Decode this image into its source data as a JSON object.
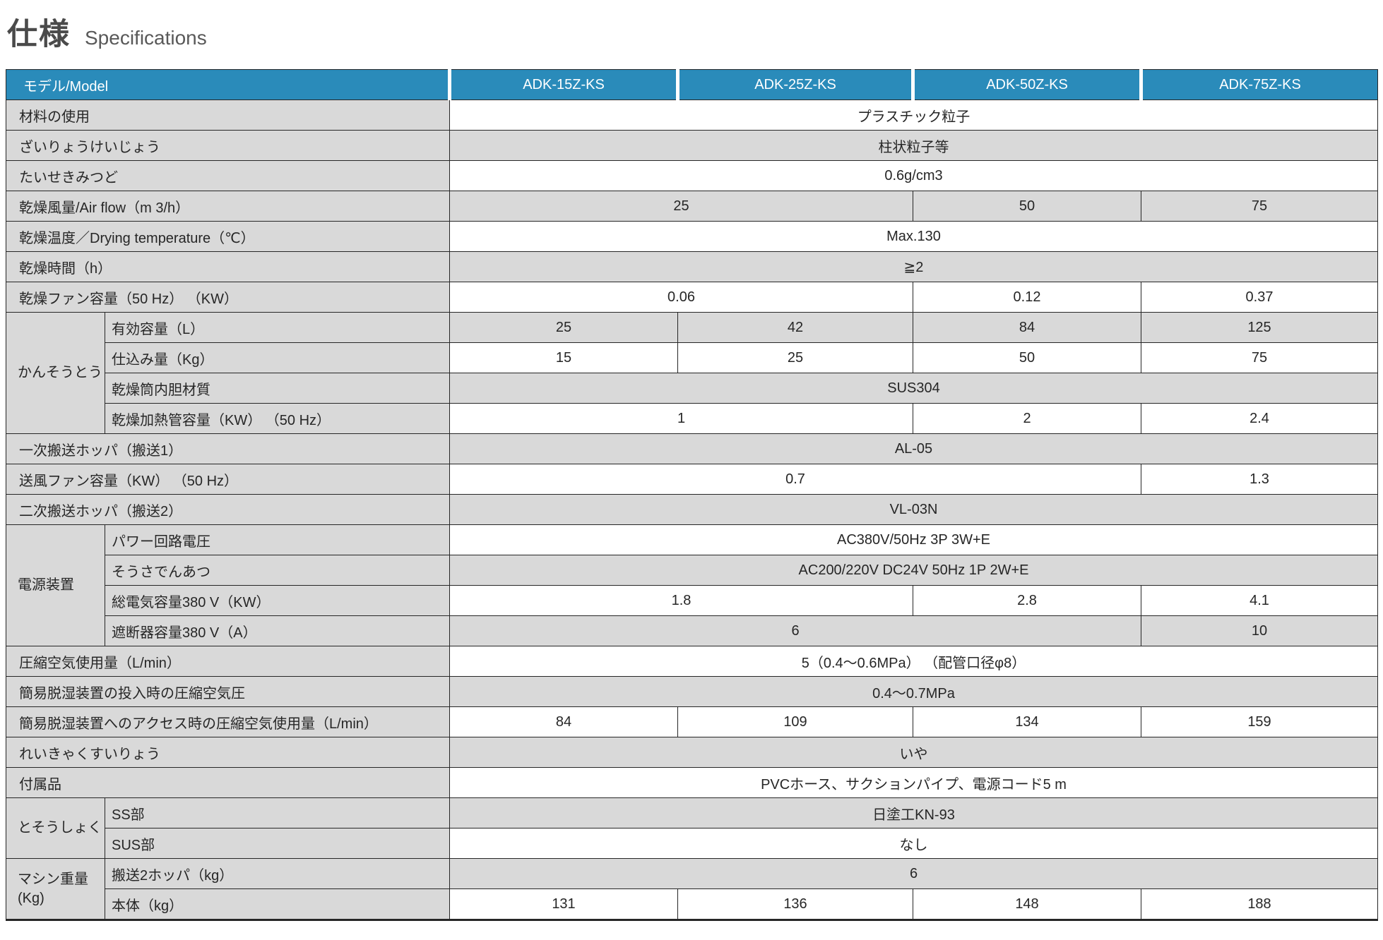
{
  "title": {
    "jp": "仕様",
    "en": "Specifications"
  },
  "colors": {
    "header_bg": "#2a8bba",
    "header_text": "#ffffff",
    "stripe_gray": "#d9d9d9",
    "stripe_white": "#ffffff",
    "border": "#262626",
    "title_jp": "#4a4a4a",
    "title_en": "#595959"
  },
  "table": {
    "header": {
      "label": "モデル/Model",
      "models": [
        "ADK-15Z-KS",
        "ADK-25Z-KS",
        "ADK-50Z-KS",
        "ADK-75Z-KS"
      ]
    },
    "rows": [
      {
        "label": "材料の使用",
        "bg": "white",
        "cells": [
          {
            "t": "プラスチック粒子",
            "s": 4
          }
        ]
      },
      {
        "label": "ざいりょうけいじょう",
        "bg": "gray",
        "cells": [
          {
            "t": "柱状粒子等",
            "s": 4
          }
        ]
      },
      {
        "label": "たいせきみつど",
        "bg": "white",
        "cells": [
          {
            "t": "0.6g/cm3",
            "s": 4
          }
        ]
      },
      {
        "label": "乾燥風量/Air flow（m 3/h）",
        "bg": "gray",
        "cells": [
          {
            "t": "25",
            "s": 2
          },
          {
            "t": "50",
            "s": 1
          },
          {
            "t": "75",
            "s": 1
          }
        ]
      },
      {
        "label": "乾燥温度／Drying temperature（℃）",
        "bg": "white",
        "cells": [
          {
            "t": "Max.130",
            "s": 4
          }
        ]
      },
      {
        "label": "乾燥時間（h）",
        "bg": "gray",
        "cells": [
          {
            "t": "≧2",
            "s": 4
          }
        ]
      },
      {
        "label": "乾燥ファン容量（50 Hz） （KW）",
        "bg": "white",
        "cells": [
          {
            "t": "0.06",
            "s": 2
          },
          {
            "t": "0.12",
            "s": 1
          },
          {
            "t": "0.37",
            "s": 1
          }
        ]
      },
      {
        "group": {
          "label": "かんそうとう",
          "rows": 4
        },
        "label": "有効容量（L）",
        "bg": "gray",
        "cells": [
          {
            "t": "25",
            "s": 1
          },
          {
            "t": "42",
            "s": 1
          },
          {
            "t": "84",
            "s": 1
          },
          {
            "t": "125",
            "s": 1
          }
        ]
      },
      {
        "sub": true,
        "label": "仕込み量（Kg）",
        "bg": "white",
        "cells": [
          {
            "t": "15",
            "s": 1
          },
          {
            "t": "25",
            "s": 1
          },
          {
            "t": "50",
            "s": 1
          },
          {
            "t": "75",
            "s": 1
          }
        ]
      },
      {
        "sub": true,
        "label": "乾燥筒内胆材質",
        "bg": "gray",
        "cells": [
          {
            "t": "SUS304",
            "s": 4
          }
        ]
      },
      {
        "sub": true,
        "label": "乾燥加熱管容量（KW） （50 Hz）",
        "bg": "white",
        "cells": [
          {
            "t": "1",
            "s": 2
          },
          {
            "t": "2",
            "s": 1
          },
          {
            "t": "2.4",
            "s": 1
          }
        ]
      },
      {
        "label": "一次搬送ホッパ（搬送1）",
        "bg": "gray",
        "cells": [
          {
            "t": "AL-05",
            "s": 4
          }
        ]
      },
      {
        "label": "送風ファン容量（KW） （50 Hz）",
        "bg": "white",
        "cells": [
          {
            "t": "0.7",
            "s": 3
          },
          {
            "t": "1.3",
            "s": 1
          }
        ]
      },
      {
        "label": "二次搬送ホッパ（搬送2）",
        "bg": "gray",
        "cells": [
          {
            "t": "VL-03N",
            "s": 4
          }
        ]
      },
      {
        "group": {
          "label": "電源装置",
          "rows": 4
        },
        "label": "パワー回路電圧",
        "bg": "white",
        "cells": [
          {
            "t": "AC380V/50Hz 3P 3W+E",
            "s": 4
          }
        ]
      },
      {
        "sub": true,
        "label": "そうさでんあつ",
        "bg": "gray",
        "cells": [
          {
            "t": "AC200/220V DC24V 50Hz 1P 2W+E",
            "s": 4
          }
        ]
      },
      {
        "sub": true,
        "label": "総電気容量380 V（KW）",
        "bg": "white",
        "cells": [
          {
            "t": "1.8",
            "s": 2
          },
          {
            "t": "2.8",
            "s": 1
          },
          {
            "t": "4.1",
            "s": 1
          }
        ]
      },
      {
        "sub": true,
        "label": "遮断器容量380 V（A）",
        "bg": "gray",
        "cells": [
          {
            "t": "6",
            "s": 3
          },
          {
            "t": "10",
            "s": 1
          }
        ]
      },
      {
        "label": "圧縮空気使用量（L/min）",
        "bg": "white",
        "cells": [
          {
            "t": "5（0.4〜0.6MPa） （配管口径φ8）",
            "s": 4
          }
        ]
      },
      {
        "label": "簡易脱湿装置の投入時の圧縮空気圧",
        "bg": "gray",
        "cells": [
          {
            "t": "0.4〜0.7MPa",
            "s": 4
          }
        ]
      },
      {
        "label": "簡易脱湿装置へのアクセス時の圧縮空気使用量（L/min）",
        "bg": "white",
        "cells": [
          {
            "t": "84",
            "s": 1
          },
          {
            "t": "109",
            "s": 1
          },
          {
            "t": "134",
            "s": 1
          },
          {
            "t": "159",
            "s": 1
          }
        ]
      },
      {
        "label": "れいきゃくすいりょう",
        "bg": "gray",
        "cells": [
          {
            "t": "いや",
            "s": 4
          }
        ]
      },
      {
        "label": "付属品",
        "bg": "white",
        "cells": [
          {
            "t": "PVCホース、サクションパイプ、電源コード5 m",
            "s": 4
          }
        ]
      },
      {
        "group": {
          "label": "とそうしょく",
          "rows": 2
        },
        "label": "SS部",
        "bg": "gray",
        "cells": [
          {
            "t": "日塗工KN-93",
            "s": 4
          }
        ]
      },
      {
        "sub": true,
        "label": "SUS部",
        "bg": "white",
        "cells": [
          {
            "t": "なし",
            "s": 4
          }
        ]
      },
      {
        "group": {
          "label": "マシン重量\n(Kg)",
          "rows": 2
        },
        "label": "搬送2ホッパ（kg）",
        "bg": "gray",
        "cells": [
          {
            "t": "6",
            "s": 4
          }
        ]
      },
      {
        "sub": true,
        "label": "本体（kg）",
        "bg": "white",
        "cells": [
          {
            "t": "131",
            "s": 1
          },
          {
            "t": "136",
            "s": 1
          },
          {
            "t": "148",
            "s": 1
          },
          {
            "t": "188",
            "s": 1
          }
        ]
      }
    ]
  }
}
